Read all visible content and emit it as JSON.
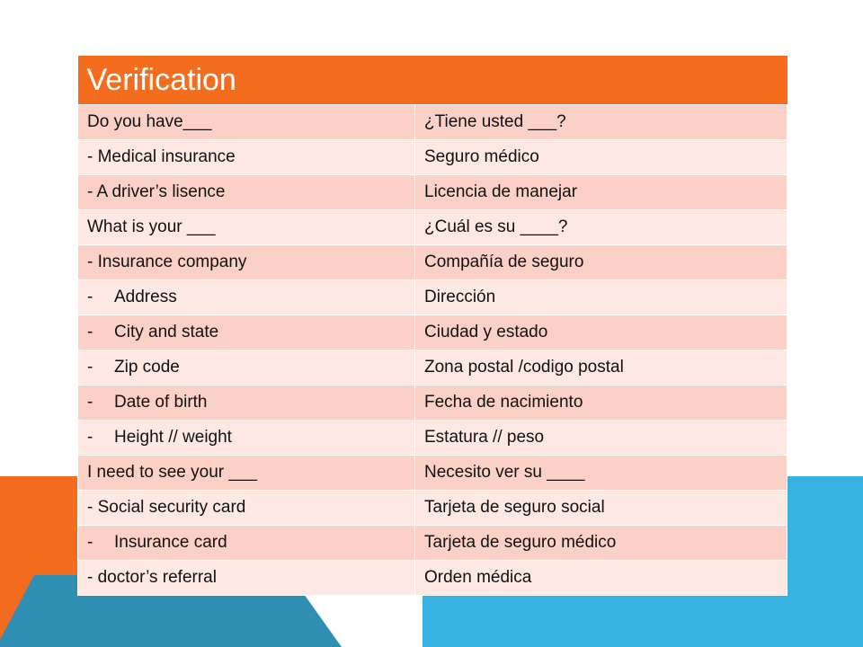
{
  "table": {
    "title": "Verification",
    "rows": [
      {
        "en_prefix": "",
        "en": "Do you have___",
        "es": "¿Tiene usted ___?"
      },
      {
        "en_prefix": "",
        "en": "- Medical insurance",
        "es": "Seguro médico"
      },
      {
        "en_prefix": "",
        "en": "- A driver’s lisence",
        "es": "Licencia de manejar"
      },
      {
        "en_prefix": "",
        "en": "What is your ___",
        "es": "¿Cuál es su ____?"
      },
      {
        "en_prefix": "",
        "en": "- Insurance company",
        "es": "Compañía de seguro"
      },
      {
        "en_prefix": "-",
        "en": "Address",
        "es": "Dirección"
      },
      {
        "en_prefix": "-",
        "en": "City and state",
        "es": "Ciudad y estado"
      },
      {
        "en_prefix": "-",
        "en": "Zip code",
        "es": "Zona postal /codigo postal"
      },
      {
        "en_prefix": "-",
        "en": "Date of birth",
        "es": "Fecha de nacimiento"
      },
      {
        "en_prefix": "-",
        "en": "Height // weight",
        "es": "Estatura // peso"
      },
      {
        "en_prefix": "",
        "en": "I need to see your ___",
        "es": "Necesito ver su ____"
      },
      {
        "en_prefix": "",
        "en": "- Social security card",
        "es": "Tarjeta de seguro social"
      },
      {
        "en_prefix": "-",
        "en": "Insurance card",
        "es": "Tarjeta de seguro médico"
      },
      {
        "en_prefix": "",
        "en": "- doctor’s referral",
        "es": "Orden médica"
      }
    ]
  },
  "colors": {
    "header": "#f46d1e",
    "row_dark": "#fbd0c6",
    "row_light": "#fde8e3",
    "accent_orange": "#f26b1f",
    "accent_blue": "#38b2e0"
  }
}
